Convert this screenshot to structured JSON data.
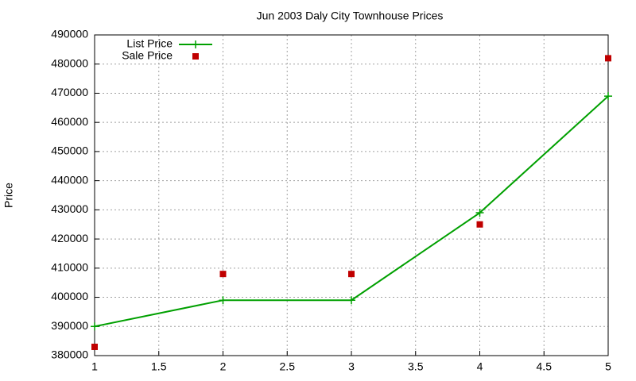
{
  "chart_data": {
    "type": "line",
    "title": "Jun 2003 Daly City Townhouse Prices",
    "y_label": "Price",
    "x": [
      1,
      2,
      3,
      4,
      5
    ],
    "series": [
      {
        "name": "List Price",
        "color": "#00a000",
        "style": "linespoints",
        "values": [
          390000,
          399000,
          399000,
          429000,
          469000
        ]
      },
      {
        "name": "Sale Price",
        "color": "#c00000",
        "style": "points",
        "values": [
          383000,
          408000,
          408000,
          425000,
          482000
        ]
      }
    ],
    "xlim": [
      1,
      5
    ],
    "xticks": [
      1,
      1.5,
      2,
      2.5,
      3,
      3.5,
      4,
      4.5,
      5
    ],
    "ylim": [
      380000,
      490000
    ],
    "yticks": [
      380000,
      390000,
      400000,
      410000,
      420000,
      430000,
      440000,
      450000,
      460000,
      470000,
      480000,
      490000
    ],
    "grid": true,
    "legend": "top-left"
  }
}
